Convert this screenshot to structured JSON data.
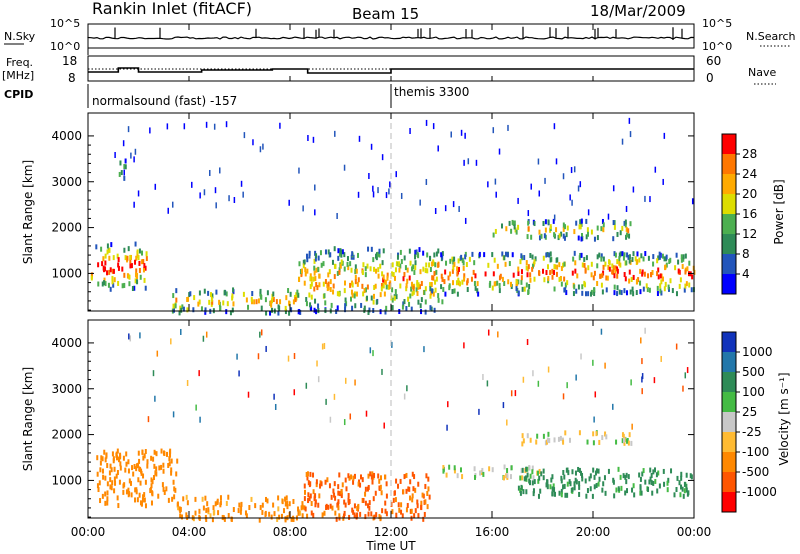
{
  "header": {
    "title": "Rankin Inlet (fitACF)",
    "beam": "Beam 15",
    "date": "18/Mar/2009"
  },
  "nsky": {
    "label": "N.Sky",
    "ticks": [
      "10^5",
      "10^0"
    ],
    "right_label": "N.Search",
    "right_ticks": [
      "10^5",
      "10^0"
    ]
  },
  "freq": {
    "label_top": "Freq.",
    "label_unit": "[MHz]",
    "ticks": [
      "18",
      "8"
    ],
    "right_label": "Nave",
    "right_ticks": [
      "60",
      "0"
    ]
  },
  "cpid": {
    "label": "CPID",
    "segments": [
      {
        "text": "normalsound (fast) -157",
        "start_hour": 0
      },
      {
        "text": "themis 3300",
        "start_hour": 12
      }
    ]
  },
  "axes": {
    "x_label": "Time UT",
    "x_ticks": [
      "00:00",
      "04:00",
      "08:00",
      "12:00",
      "16:00",
      "20:00",
      "00:00"
    ],
    "y_label": "Slant Range [km]",
    "y_ticks": [
      "1000",
      "2000",
      "3000",
      "4000"
    ]
  },
  "colorbars": {
    "power": {
      "label": "Power [dB]",
      "ticks": [
        "4",
        "8",
        "12",
        "16",
        "20",
        "24",
        "28"
      ],
      "colors": [
        "#0000ff",
        "#2255bb",
        "#2e8b57",
        "#4caf50",
        "#dddd00",
        "#ffaa00",
        "#ff7700",
        "#ff0000"
      ]
    },
    "velocity": {
      "label": "Velocity [m s⁻¹]",
      "ticks": [
        "1000",
        "500",
        "100",
        "25",
        "-25",
        "-100",
        "-500",
        "-1000"
      ],
      "colors": [
        "#1133bb",
        "#2277aa",
        "#2e8b57",
        "#44bb44",
        "#c8c8c8",
        "#ffbb33",
        "#ff8800",
        "#ff5500",
        "#ff0000"
      ]
    }
  },
  "chart_data": {
    "type": "heatmap",
    "x_range_hours": [
      0,
      24
    ],
    "y_range_km": [
      180,
      4500
    ],
    "power_regions": [
      {
        "t0": 0.1,
        "t1": 2.3,
        "r0": 700,
        "r1": 1700,
        "level": 0.85
      },
      {
        "t0": 1.2,
        "t1": 1.6,
        "r0": 3100,
        "r1": 3550,
        "level": 0.3
      },
      {
        "t0": 3.3,
        "t1": 8.3,
        "r0": 180,
        "r1": 700,
        "level": 0.55
      },
      {
        "t0": 8.3,
        "t1": 14.0,
        "r0": 200,
        "r1": 1600,
        "level": 0.6
      },
      {
        "t0": 13.5,
        "t1": 24.0,
        "r0": 600,
        "r1": 1500,
        "level": 0.75
      },
      {
        "t0": 16.0,
        "t1": 21.5,
        "r0": 1800,
        "r1": 2200,
        "level": 0.5
      }
    ],
    "velocity_regions": [
      {
        "t0": 0.3,
        "t1": 3.5,
        "r0": 500,
        "r1": 1700,
        "v": -300
      },
      {
        "t0": 3.5,
        "t1": 8.5,
        "r0": 180,
        "r1": 700,
        "v": -150
      },
      {
        "t0": 8.5,
        "t1": 13.5,
        "r0": 200,
        "r1": 1200,
        "v": -600
      },
      {
        "t0": 14.0,
        "t1": 18.0,
        "r0": 1100,
        "r1": 1350,
        "v": 0
      },
      {
        "t0": 17.0,
        "t1": 21.5,
        "r0": 1850,
        "r1": 2100,
        "v": 0
      },
      {
        "t0": 17.0,
        "t1": 24.0,
        "r0": 700,
        "r1": 1300,
        "v": 150
      }
    ]
  }
}
